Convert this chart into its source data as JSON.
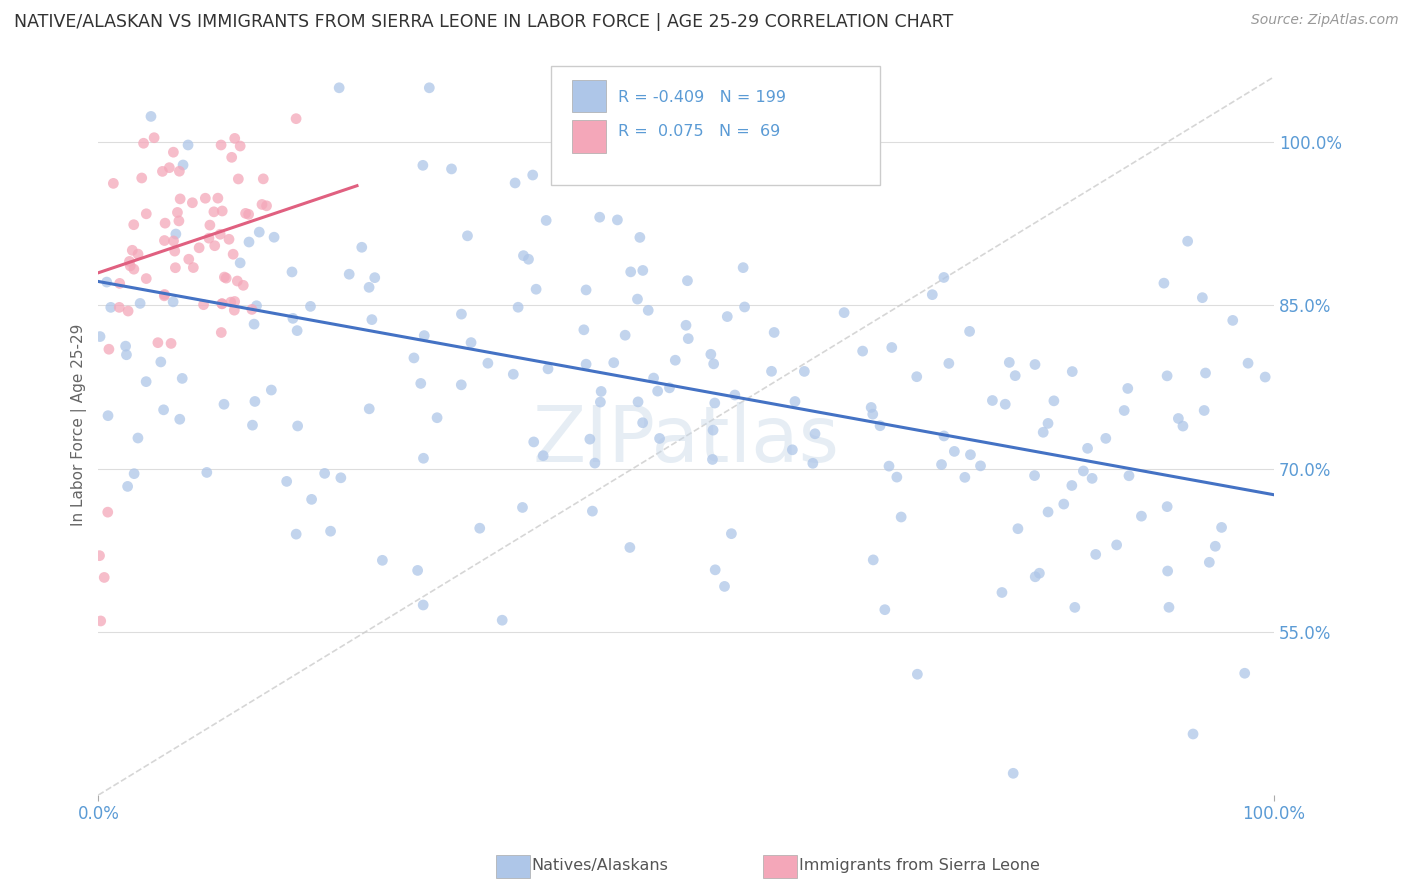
{
  "title": "NATIVE/ALASKAN VS IMMIGRANTS FROM SIERRA LEONE IN LABOR FORCE | AGE 25-29 CORRELATION CHART",
  "source_text": "Source: ZipAtlas.com",
  "ylabel_text": "In Labor Force | Age 25-29",
  "xlim": [
    0.0,
    1.0
  ],
  "ylim": [
    0.4,
    1.08
  ],
  "xtick_positions": [
    0.0,
    1.0
  ],
  "xtick_labels": [
    "0.0%",
    "100.0%"
  ],
  "ytick_values": [
    0.55,
    0.7,
    0.85,
    1.0
  ],
  "ytick_labels": [
    "55.0%",
    "70.0%",
    "85.0%",
    "100.0%"
  ],
  "R_native": -0.409,
  "N_native": 199,
  "R_sierra": 0.075,
  "N_sierra": 69,
  "native_color": "#aec6e8",
  "sierra_color": "#f4a7b9",
  "native_line_color": "#4472c4",
  "sierra_line_color": "#e06080",
  "watermark": "ZIPatlas",
  "legend_labels": [
    "Natives/Alaskans",
    "Immigrants from Sierra Leone"
  ],
  "background_color": "#ffffff",
  "grid_color": "#dddddd",
  "title_color": "#333333",
  "axis_label_color": "#666666",
  "tick_label_color": "#5b9bd5",
  "source_color": "#999999",
  "native_line_y0": 0.872,
  "native_line_y1": 0.676,
  "sierra_line_x0": 0.0,
  "sierra_line_x1": 0.22,
  "sierra_line_y0": 0.88,
  "sierra_line_y1": 0.96
}
